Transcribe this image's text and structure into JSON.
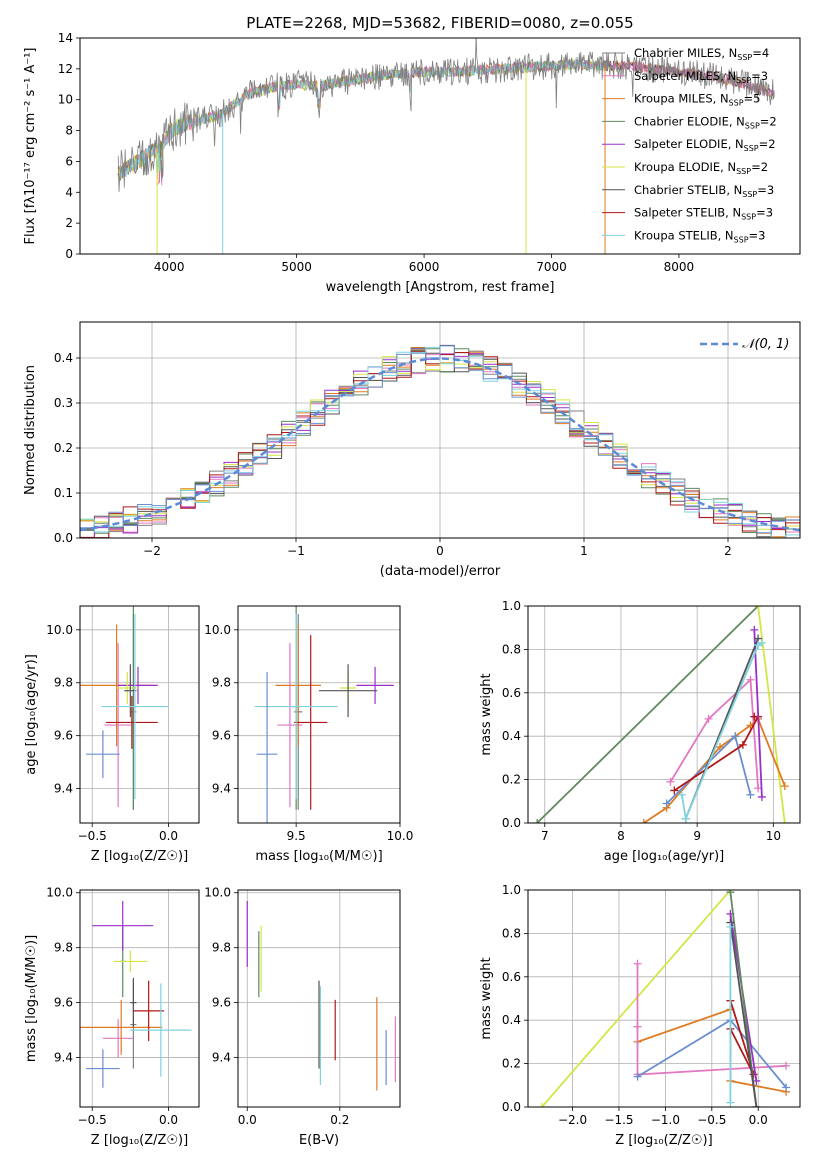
{
  "figure": {
    "title": "PLATE=2268, MJD=53682, FIBERID=0080, z=0.055"
  },
  "colors": {
    "Chabrier MILES": "#808080",
    "Salpeter MILES": "#e377c2",
    "Kroupa MILES": "#e07b22",
    "Chabrier ELODIE": "#5f8a5f",
    "Salpeter ELODIE": "#9b30c8",
    "Kroupa ELODIE": "#d4e646",
    "Chabrier STELIB": "#555555",
    "Salpeter STELIB": "#b01818",
    "Kroupa STELIB": "#7fd3e0",
    "blue_extra": "#6a8fd0"
  },
  "chart_data": [
    {
      "id": "spectrum",
      "type": "line",
      "title": "PLATE=2268, MJD=53682, FIBERID=0080, z=0.055",
      "xlabel": "wavelength [Angstrom, rest frame]",
      "ylabel": "Flux [fλ10⁻¹⁷ erg cm⁻² s⁻¹ A⁻¹]",
      "xlim": [
        3300,
        8950
      ],
      "ylim": [
        0,
        14
      ],
      "xticks": [
        "4000",
        "5000",
        "6000",
        "7000",
        "8000"
      ],
      "yticks": [
        "0",
        "2",
        "4",
        "6",
        "8",
        "10",
        "12",
        "14"
      ],
      "legend_position": "top-right",
      "continuum_wavelength": [
        3600,
        3750,
        3900,
        4050,
        4200,
        4400,
        4600,
        4800,
        5000,
        5200,
        5400,
        5600,
        5800,
        6000,
        6200,
        6400,
        6600,
        6800,
        7000,
        7200,
        7400,
        7600,
        7800,
        8000,
        8200,
        8400,
        8700
      ],
      "continuum_flux": [
        5.2,
        6.0,
        6.8,
        8.2,
        8.6,
        9.0,
        10.3,
        10.8,
        11.0,
        10.9,
        11.2,
        11.5,
        11.7,
        11.8,
        11.8,
        11.9,
        12.0,
        12.1,
        12.2,
        12.3,
        12.2,
        12.2,
        12.0,
        11.8,
        11.6,
        11.3,
        10.5
      ],
      "series": [
        {
          "name": "Chabrier MILES, NSSP=4",
          "label_main": "Chabrier MILES, N",
          "label_sub": "SSP",
          "label_tail": "=4"
        },
        {
          "name": "Salpeter MILES, NSSP=3",
          "label_main": "Salpeter MILES, N",
          "label_sub": "SSP",
          "label_tail": "=3"
        },
        {
          "name": "Kroupa MILES, NSSP=5",
          "label_main": "Kroupa MILES, N",
          "label_sub": "SSP",
          "label_tail": "=5"
        },
        {
          "name": "Chabrier ELODIE, NSSP=2",
          "label_main": "Chabrier ELODIE, N",
          "label_sub": "SSP",
          "label_tail": "=2"
        },
        {
          "name": "Salpeter ELODIE, NSSP=2",
          "label_main": "Salpeter ELODIE, N",
          "label_sub": "SSP",
          "label_tail": "=2"
        },
        {
          "name": "Kroupa ELODIE, NSSP=2",
          "label_main": "Kroupa ELODIE, N",
          "label_sub": "SSP",
          "label_tail": "=2"
        },
        {
          "name": "Chabrier STELIB, NSSP=3",
          "label_main": "Chabrier STELIB, N",
          "label_sub": "SSP",
          "label_tail": "=3"
        },
        {
          "name": "Salpeter STELIB, NSSP=3",
          "label_main": "Salpeter STELIB, N",
          "label_sub": "SSP",
          "label_tail": "=3"
        },
        {
          "name": "Kroupa STELIB, NSSP=3",
          "label_main": "Kroupa STELIB, N",
          "label_sub": "SSP",
          "label_tail": "=3"
        }
      ]
    },
    {
      "id": "residuals",
      "type": "line",
      "xlabel": "(data-model)/error",
      "ylabel": "Normed distribution",
      "xlim": [
        -2.5,
        2.5
      ],
      "ylim": [
        0,
        0.48
      ],
      "xticks": [
        "−2",
        "−1",
        "0",
        "1",
        "2"
      ],
      "yticks": [
        "0.0",
        "0.1",
        "0.2",
        "0.3",
        "0.4"
      ],
      "grid": true,
      "legend": "𝒩(0, 1)",
      "legend_position": "top-right",
      "bin_width": 0.1,
      "histogram_series": 9
    },
    {
      "id": "age_vs_Z",
      "type": "scatter",
      "xlabel": "Z [log₁₀(Z/Z☉)]",
      "ylabel": "age  [log₁₀(age/yr)]",
      "xlim": [
        -0.58,
        0.2
      ],
      "ylim": [
        9.27,
        10.09
      ],
      "xticks": [
        "−0.5",
        "0.0"
      ],
      "yticks": [
        "9.4",
        "9.6",
        "9.8",
        "10.0"
      ],
      "points": [
        {
          "series": "Chabrier MILES",
          "x": -0.23,
          "y": 9.69,
          "xerr": 0.02,
          "yerr": 0.37
        },
        {
          "series": "Salpeter MILES",
          "x": -0.33,
          "y": 9.64,
          "xerr": 0.09,
          "yerr": 0.31
        },
        {
          "series": "Kroupa MILES",
          "x": -0.34,
          "y": 9.79,
          "xerr": 0.24,
          "yerr": 0.23
        },
        {
          "series": "Chabrier ELODIE",
          "x": -0.23,
          "y": 9.71,
          "xerr": 0.02,
          "yerr": 0.39
        },
        {
          "series": "Salpeter ELODIE",
          "x": -0.2,
          "y": 9.79,
          "xerr": 0.13,
          "yerr": 0.07
        },
        {
          "series": "Kroupa ELODIE",
          "x": -0.27,
          "y": 9.78,
          "xerr": 0.07,
          "yerr": 0.06
        },
        {
          "series": "Chabrier STELIB",
          "x": -0.25,
          "y": 9.77,
          "xerr": 0.04,
          "yerr": 0.1
        },
        {
          "series": "Salpeter STELIB",
          "x": -0.24,
          "y": 9.65,
          "xerr": 0.17,
          "yerr": 0.1
        },
        {
          "series": "Kroupa STELIB",
          "x": -0.22,
          "y": 9.71,
          "xerr": 0.22,
          "yerr": 0.35
        },
        {
          "series": "blue_extra",
          "x": -0.43,
          "y": 9.53,
          "xerr": 0.11,
          "yerr": 0.09
        }
      ]
    },
    {
      "id": "age_vs_mass",
      "type": "scatter",
      "xlabel": "mass [log₁₀(M/M☉)]",
      "xlim": [
        9.22,
        10.0
      ],
      "ylim": [
        9.27,
        10.09
      ],
      "xticks": [
        "9.5",
        "10.0"
      ],
      "yticks": [
        "9.4",
        "9.6",
        "9.8",
        "10.0"
      ],
      "points": [
        {
          "series": "Chabrier MILES",
          "x": 9.51,
          "y": 9.69,
          "xerr": 0.02,
          "yerr": 0.37
        },
        {
          "series": "Salpeter MILES",
          "x": 9.47,
          "y": 9.64,
          "xerr": 0.06,
          "yerr": 0.31
        },
        {
          "series": "Kroupa MILES",
          "x": 9.51,
          "y": 9.79,
          "xerr": 0.11,
          "yerr": 0.23
        },
        {
          "series": "Chabrier ELODIE",
          "x": 9.5,
          "y": 9.71,
          "xerr": 0.02,
          "yerr": 0.39
        },
        {
          "series": "Salpeter ELODIE",
          "x": 9.88,
          "y": 9.79,
          "xerr": 0.09,
          "yerr": 0.07
        },
        {
          "series": "Kroupa ELODIE",
          "x": 9.75,
          "y": 9.78,
          "xerr": 0.04,
          "yerr": 0.06
        },
        {
          "series": "Chabrier STELIB",
          "x": 9.75,
          "y": 9.77,
          "xerr": 0.14,
          "yerr": 0.1
        },
        {
          "series": "Salpeter STELIB",
          "x": 9.57,
          "y": 9.65,
          "xerr": 0.08,
          "yerr": 0.33
        },
        {
          "series": "Kroupa STELIB",
          "x": 9.5,
          "y": 9.71,
          "xerr": 0.2,
          "yerr": 0.35
        },
        {
          "series": "blue_extra",
          "x": 9.36,
          "y": 9.53,
          "xerr": 0.05,
          "yerr": 0.31
        }
      ]
    },
    {
      "id": "massweight_vs_age",
      "type": "line",
      "xlabel": "age  [log₁₀(age/yr)]",
      "ylabel": "mass weight",
      "xlim": [
        6.78,
        10.35
      ],
      "ylim": [
        0,
        1
      ],
      "xticks": [
        "7",
        "8",
        "9",
        "10"
      ],
      "yticks": [
        "0.0",
        "0.2",
        "0.4",
        "0.6",
        "0.8",
        "1.0"
      ],
      "grid": true,
      "series": [
        {
          "name": "Chabrier ELODIE",
          "x": [
            6.9,
            9.8
          ],
          "y": [
            0.0,
            1.0
          ]
        },
        {
          "name": "Kroupa ELODIE",
          "x": [
            9.8,
            10.15
          ],
          "y": [
            1.0,
            0.0
          ]
        },
        {
          "name": "Kroupa MILES",
          "x": [
            8.3,
            8.6,
            9.3,
            9.5,
            9.7,
            9.8,
            10.15
          ],
          "y": [
            0.0,
            0.07,
            0.35,
            0.4,
            0.45,
            0.48,
            0.17
          ]
        },
        {
          "name": "Salpeter MILES",
          "x": [
            8.65,
            9.15,
            9.7,
            9.8
          ],
          "y": [
            0.19,
            0.48,
            0.66,
            0.16
          ]
        },
        {
          "name": "blue_extra",
          "x": [
            8.6,
            9.5,
            9.7
          ],
          "y": [
            0.09,
            0.4,
            0.13
          ]
        },
        {
          "name": "Salpeter STELIB",
          "x": [
            8.7,
            9.6,
            9.8,
            9.75
          ],
          "y": [
            0.15,
            0.36,
            0.49,
            0.49
          ]
        },
        {
          "name": "Salpeter ELODIE",
          "x": [
            9.75,
            9.85
          ],
          "y": [
            0.89,
            0.12
          ]
        },
        {
          "name": "Chabrier STELIB",
          "x": [
            8.85,
            9.8
          ],
          "y": [
            0.02,
            0.85
          ]
        },
        {
          "name": "Kroupa STELIB",
          "x": [
            8.8,
            8.85,
            9.8,
            9.85
          ],
          "y": [
            0.13,
            0.02,
            0.82,
            0.83
          ]
        }
      ]
    },
    {
      "id": "mass_vs_Z",
      "type": "scatter",
      "xlabel": "Z [log₁₀(Z/Z☉)]",
      "ylabel": "mass [log₁₀(M/M☉)]",
      "xlim": [
        -0.58,
        0.2
      ],
      "ylim": [
        9.22,
        10.01
      ],
      "xticks": [
        "−0.5",
        "0.0"
      ],
      "yticks": [
        "9.4",
        "9.6",
        "9.8",
        "10.0"
      ],
      "points": [
        {
          "series": "Chabrier MILES",
          "x": -0.23,
          "y": 9.52,
          "xerr": 0.02,
          "yerr": 0.16
        },
        {
          "series": "Salpeter MILES",
          "x": -0.33,
          "y": 9.47,
          "xerr": 0.1,
          "yerr": 0.07
        },
        {
          "series": "Kroupa MILES",
          "x": -0.31,
          "y": 9.51,
          "xerr": 0.27,
          "yerr": 0.1
        },
        {
          "series": "Chabrier ELODIE",
          "x": -0.3,
          "y": 9.75,
          "xerr": 0.02,
          "yerr": 0.13
        },
        {
          "series": "Salpeter ELODIE",
          "x": -0.3,
          "y": 9.88,
          "xerr": 0.2,
          "yerr": 0.09
        },
        {
          "series": "Kroupa ELODIE",
          "x": -0.25,
          "y": 9.75,
          "xerr": 0.11,
          "yerr": 0.04
        },
        {
          "series": "Chabrier STELIB",
          "x": -0.23,
          "y": 9.6,
          "xerr": 0.02,
          "yerr": 0.09
        },
        {
          "series": "Salpeter STELIB",
          "x": -0.13,
          "y": 9.57,
          "xerr": 0.1,
          "yerr": 0.11
        },
        {
          "series": "Kroupa STELIB",
          "x": -0.05,
          "y": 9.5,
          "xerr": 0.2,
          "yerr": 0.17
        },
        {
          "series": "blue_extra",
          "x": -0.43,
          "y": 9.36,
          "xerr": 0.11,
          "yerr": 0.07
        }
      ]
    },
    {
      "id": "mass_vs_ebv",
      "type": "scatter",
      "xlabel": "E(B-V)",
      "xlim": [
        -0.02,
        0.33
      ],
      "ylim": [
        9.22,
        10.01
      ],
      "xticks": [
        "0.0",
        "0.2"
      ],
      "yticks": [
        "9.4",
        "9.6",
        "9.8",
        "10.0"
      ],
      "points": [
        {
          "series": "Salpeter ELODIE",
          "x": 0.0,
          "y": 9.85,
          "yerr": 0.12
        },
        {
          "series": "Kroupa ELODIE",
          "x": 0.03,
          "y": 9.76,
          "yerr": 0.12
        },
        {
          "series": "Chabrier ELODIE",
          "x": 0.025,
          "y": 9.74,
          "yerr": 0.12
        },
        {
          "series": "Chabrier STELIB",
          "x": 0.155,
          "y": 9.52,
          "yerr": 0.16
        },
        {
          "series": "Kroupa STELIB",
          "x": 0.158,
          "y": 9.48,
          "yerr": 0.18
        },
        {
          "series": "Salpeter STELIB",
          "x": 0.19,
          "y": 9.5,
          "yerr": 0.11
        },
        {
          "series": "Kroupa MILES",
          "x": 0.28,
          "y": 9.45,
          "yerr": 0.17
        },
        {
          "series": "blue_extra",
          "x": 0.3,
          "y": 9.4,
          "yerr": 0.1
        },
        {
          "series": "Salpeter MILES",
          "x": 0.32,
          "y": 9.43,
          "yerr": 0.12
        }
      ]
    },
    {
      "id": "massweight_vs_Z",
      "type": "line",
      "xlabel": "Z [log₁₀(Z/Z☉)]",
      "ylabel": "mass weight",
      "xlim": [
        -2.48,
        0.45
      ],
      "ylim": [
        0,
        1
      ],
      "xticks": [
        "−2.0",
        "−1.5",
        "−1.0",
        "−0.5",
        "0.0"
      ],
      "yticks": [
        "0.0",
        "0.2",
        "0.4",
        "0.6",
        "0.8",
        "1.0"
      ],
      "grid": true,
      "series": [
        {
          "name": "Kroupa ELODIE",
          "x": [
            -2.33,
            -0.3
          ],
          "y": [
            0.0,
            1.0
          ]
        },
        {
          "name": "Kroupa MILES",
          "x": [
            -1.3,
            -0.3,
            -0.3,
            0.3
          ],
          "y": [
            0.3,
            0.45,
            0.12,
            0.07
          ]
        },
        {
          "name": "Salpeter MILES",
          "x": [
            -1.3,
            -1.3,
            -1.3,
            0.3
          ],
          "y": [
            0.66,
            0.37,
            0.15,
            0.19
          ]
        },
        {
          "name": "blue_extra",
          "x": [
            -1.3,
            -0.3,
            0.3
          ],
          "y": [
            0.14,
            0.4,
            0.09
          ]
        },
        {
          "name": "Salpeter STELIB",
          "x": [
            -0.3,
            -0.05,
            -0.3
          ],
          "y": [
            0.49,
            0.15,
            0.36
          ]
        },
        {
          "name": "Salpeter ELODIE",
          "x": [
            -0.3,
            -0.02
          ],
          "y": [
            0.89,
            0.12
          ]
        },
        {
          "name": "Chabrier ELODIE",
          "x": [
            -0.3,
            -0.02
          ],
          "y": [
            0.99,
            0.0
          ]
        },
        {
          "name": "Chabrier STELIB",
          "x": [
            -0.3,
            -0.02
          ],
          "y": [
            0.85,
            0.0
          ]
        },
        {
          "name": "Kroupa STELIB",
          "x": [
            -0.3,
            -0.3
          ],
          "y": [
            0.02,
            0.83
          ]
        }
      ]
    }
  ]
}
